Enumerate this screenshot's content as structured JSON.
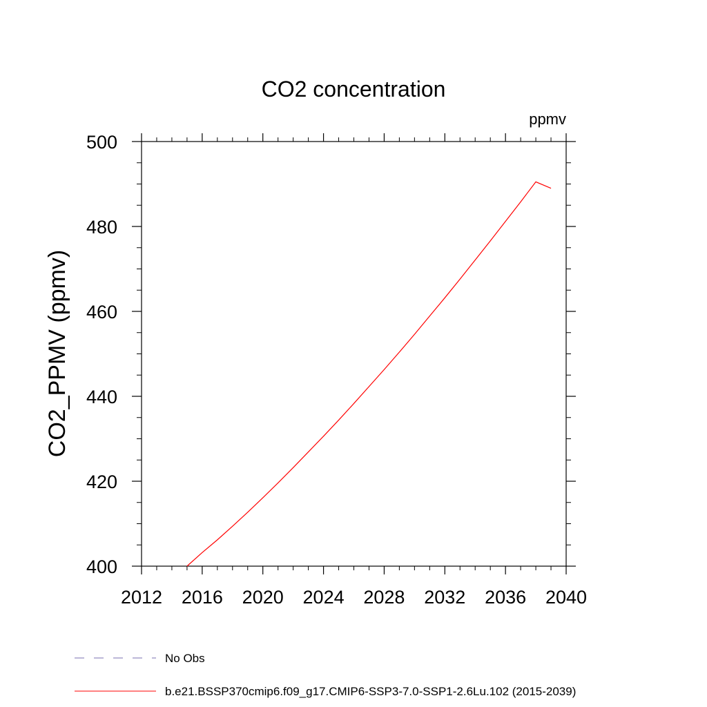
{
  "chart_data": {
    "type": "line",
    "title": "CO2 concentration",
    "units_label": "ppmv",
    "ylabel": "CO2_PPMV  (ppmv)",
    "xlabel": "",
    "xlim": [
      2012,
      2040
    ],
    "ylim": [
      400,
      500
    ],
    "x_ticks": [
      "2012",
      "2016",
      "2020",
      "2024",
      "2028",
      "2032",
      "2036",
      "2040"
    ],
    "y_ticks": [
      "400",
      "420",
      "440",
      "460",
      "480",
      "500"
    ],
    "grid": false,
    "legend_position": "bottom",
    "legend": [
      {
        "label": "No Obs",
        "style": "dashed",
        "color": "#7a6fb0"
      },
      {
        "label": "b.e21.BSSP370cmip6.f09_g17.CMIP6-SSP3-7.0-SSP1-2.6Lu.102 (2015-2039)",
        "style": "solid",
        "color": "#ff0000"
      }
    ],
    "series": [
      {
        "color": "#ff0000",
        "x": [
          2015,
          2016,
          2017,
          2018,
          2019,
          2020,
          2021,
          2022,
          2023,
          2024,
          2025,
          2026,
          2027,
          2028,
          2029,
          2030,
          2031,
          2032,
          2033,
          2034,
          2035,
          2036,
          2037,
          2038,
          2039
        ],
        "y": [
          400.0,
          403.2,
          406.2,
          409.4,
          412.7,
          416.1,
          419.6,
          423.2,
          426.9,
          430.6,
          434.4,
          438.3,
          442.3,
          446.3,
          450.4,
          454.6,
          458.9,
          463.2,
          467.6,
          472.1,
          476.6,
          481.2,
          485.8,
          490.5,
          489.0
        ]
      }
    ]
  }
}
